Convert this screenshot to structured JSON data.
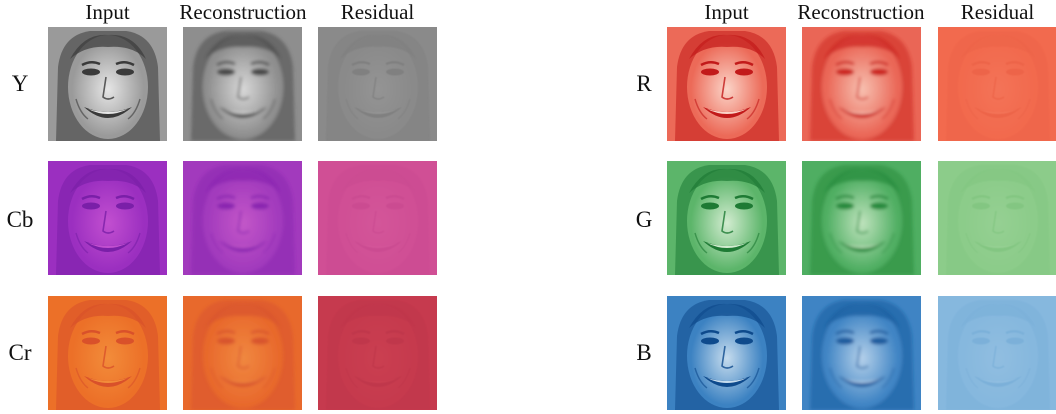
{
  "left_panel": {
    "columns": [
      "Input",
      "Reconstruction",
      "Residual"
    ],
    "rows": [
      {
        "label": "Y",
        "tiles": [
          {
            "type": "input",
            "base": "#9a9a9a",
            "dark": "#3a3a3a",
            "light": "#e6e6e6"
          },
          {
            "type": "reconstruction",
            "base": "#8e8e8e",
            "dark": "#4a4a4a",
            "light": "#d8d8d8"
          },
          {
            "type": "residual",
            "base": "#8a8a8a",
            "dark": "#6e6e6e",
            "light": "#a8a8a8"
          }
        ]
      },
      {
        "label": "Cb",
        "tiles": [
          {
            "type": "input",
            "base": "#9b2fc0",
            "dark": "#7a1fa8",
            "light": "#c24fd0"
          },
          {
            "type": "reconstruction",
            "base": "#a23abd",
            "dark": "#8a25b0",
            "light": "#c357c8"
          },
          {
            "type": "residual",
            "base": "#d04f95",
            "dark": "#c2458c",
            "light": "#dc64a2"
          }
        ]
      },
      {
        "label": "Cr",
        "tiles": [
          {
            "type": "input",
            "base": "#ec7028",
            "dark": "#d9512a",
            "light": "#f28c3a"
          },
          {
            "type": "reconstruction",
            "base": "#e8692c",
            "dark": "#d8542e",
            "light": "#f08840"
          },
          {
            "type": "residual",
            "base": "#c63a4e",
            "dark": "#b53046",
            "light": "#d44a56"
          }
        ]
      }
    ]
  },
  "right_panel": {
    "columns": [
      "Input",
      "Reconstruction",
      "Residual"
    ],
    "rows": [
      {
        "label": "R",
        "tiles": [
          {
            "type": "input",
            "base": "#ec6a58",
            "dark": "#c21a1a",
            "light": "#fbd4c8"
          },
          {
            "type": "reconstruction",
            "base": "#ea6656",
            "dark": "#cc2622",
            "light": "#f7c0b0"
          },
          {
            "type": "residual",
            "base": "#f26a4e",
            "dark": "#e55a40",
            "light": "#f7866a"
          }
        ]
      },
      {
        "label": "G",
        "tiles": [
          {
            "type": "input",
            "base": "#5cb56a",
            "dark": "#1e7a34",
            "light": "#d2ecd0"
          },
          {
            "type": "reconstruction",
            "base": "#4fae62",
            "dark": "#268a3c",
            "light": "#bfe3bd"
          },
          {
            "type": "residual",
            "base": "#8ccc8a",
            "dark": "#74bd74",
            "light": "#a8d9a4"
          }
        ]
      },
      {
        "label": "B",
        "tiles": [
          {
            "type": "input",
            "base": "#3c82c2",
            "dark": "#0e4a8c",
            "light": "#c6dcee"
          },
          {
            "type": "reconstruction",
            "base": "#3f84c4",
            "dark": "#1a5c9e",
            "light": "#b4d0ea"
          },
          {
            "type": "residual",
            "base": "#86b8de",
            "dark": "#6aa4d2",
            "light": "#a6cae6"
          }
        ]
      }
    ]
  }
}
